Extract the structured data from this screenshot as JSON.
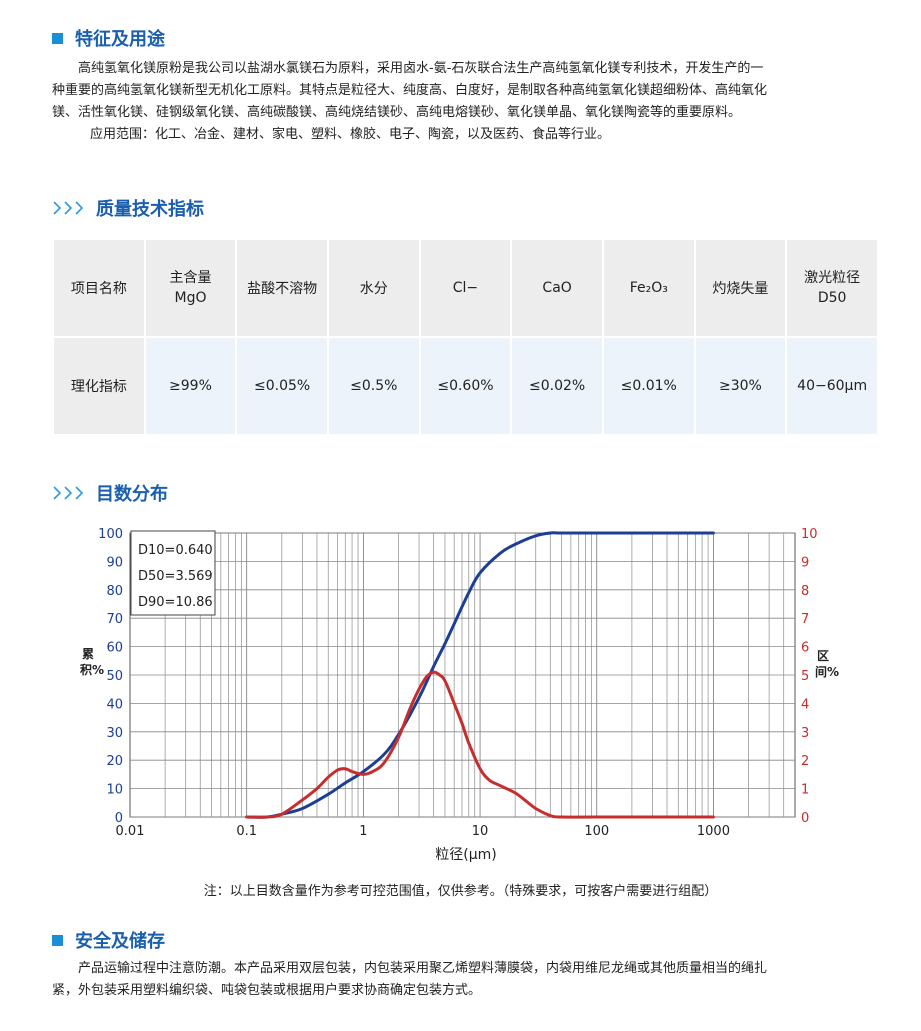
{
  "section1": {
    "title": "特征及用途",
    "para1": "高纯氢氧化镁原粉是我公司以盐湖水氯镁石为原料，采用卤水-氨-石灰联合法生产高纯氢氧化镁专利技术，开发生产的一",
    "para1b": "种重要的高纯氢氧化镁新型无机化工原料。其特点是粒径大、纯度高、白度好，是制取各种高纯氢氧化镁超细粉体、高纯氧化",
    "para1c": "镁、活性氧化镁、硅钢级氧化镁、高纯碳酸镁、高纯烧结镁砂、高纯电熔镁砂、氧化镁单晶、氧化镁陶瓷等的重要原料。",
    "para2": "应用范围：化工、冶金、建材、家电、塑料、橡胶、电子、陶瓷，以及医药、食品等行业。"
  },
  "section2": {
    "title": "质量技术指标",
    "headers": [
      "项目名称",
      "主含量\nMgO",
      "盐酸不溶物",
      "水分",
      "Cl−",
      "CaO",
      "Fe₂O₃",
      "灼烧失量",
      "激光粒径\nD50"
    ],
    "row_label": "理化指标",
    "values": [
      "≥99%",
      "≤0.05%",
      "≤0.5%",
      "≤0.60%",
      "≤0.02%",
      "≤0.01%",
      "≥30%",
      "40−60μm"
    ]
  },
  "section3": {
    "title": "目数分布",
    "note": "注：以上目数含量作为参考可控范围值，仅供参考。（特殊要求，可按客户需要进行组配）"
  },
  "section4": {
    "title": "安全及储存",
    "para1": "产品运输过程中注意防潮。本产品采用双层包装，内包装采用聚乙烯塑料薄膜袋，内袋用维尼龙绳或其他质量相当的绳扎",
    "para1b": "紧，外包装采用塑料编织袋、吨袋包装或根据用户要求协商确定包装方式。"
  },
  "colors": {
    "accent": "#1a5fae",
    "cumulative": "#1c3f94",
    "interval": "#c62d2d"
  },
  "chart_data": {
    "type": "line",
    "xlabel": "粒径(μm)",
    "ylabel_left": "累积%",
    "ylabel_right": "区间%",
    "x_scale": "log",
    "xlim": [
      0.01,
      5000
    ],
    "x_ticks": [
      "0.01",
      "0.1",
      "1",
      "10",
      "100",
      "1000"
    ],
    "ylim_left": [
      0,
      100
    ],
    "ylim_right": [
      0,
      10
    ],
    "y_ticks_left": [
      "0",
      "10",
      "20",
      "30",
      "40",
      "50",
      "60",
      "70",
      "80",
      "90",
      "100"
    ],
    "y_ticks_right": [
      "0",
      "1",
      "2",
      "3",
      "4",
      "5",
      "6",
      "7",
      "8",
      "9",
      "10"
    ],
    "grid": true,
    "annotations": [
      "D10=0.640",
      "D50=3.569",
      "D90=10.86"
    ],
    "series": [
      {
        "axis": "left",
        "x": [
          0.1,
          0.15,
          0.2,
          0.3,
          0.5,
          0.7,
          1,
          1.5,
          2,
          3,
          4,
          5,
          6,
          8,
          10,
          15,
          20,
          30,
          40,
          50,
          100,
          1000
        ],
        "y": [
          0,
          0,
          1,
          3,
          8,
          12,
          16,
          22,
          29,
          42,
          53,
          61,
          68,
          79,
          86,
          93,
          96,
          99,
          100,
          100,
          100,
          100
        ]
      },
      {
        "axis": "right",
        "x": [
          0.1,
          0.15,
          0.2,
          0.3,
          0.4,
          0.5,
          0.6,
          0.7,
          0.8,
          1,
          1.2,
          1.5,
          2,
          2.5,
          3,
          3.5,
          4,
          4.5,
          5,
          6,
          7,
          8,
          10,
          12,
          15,
          20,
          25,
          30,
          40,
          50,
          100,
          1000
        ],
        "y": [
          0,
          0,
          0.1,
          0.6,
          1.0,
          1.4,
          1.65,
          1.7,
          1.6,
          1.5,
          1.6,
          1.9,
          2.8,
          3.8,
          4.5,
          4.95,
          5.1,
          5.0,
          4.8,
          4.0,
          3.3,
          2.6,
          1.7,
          1.3,
          1.1,
          0.85,
          0.55,
          0.3,
          0.05,
          0,
          0,
          0
        ]
      }
    ]
  }
}
